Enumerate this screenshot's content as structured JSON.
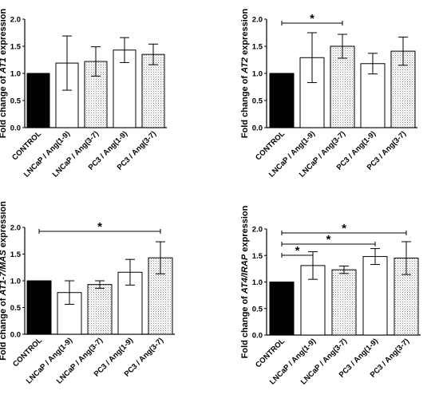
{
  "chart_data": [
    {
      "type": "bar",
      "categories": [
        "CONTROL",
        "LNCaP / Ang(1-9)",
        "LNCaP / Ang(3-7)",
        "PC3 / Ang(1-9)",
        "PC3 / Ang(3-7)"
      ],
      "values": [
        1.0,
        1.19,
        1.22,
        1.43,
        1.35
      ],
      "errors": [
        0,
        0.5,
        0.27,
        0.23,
        0.19
      ],
      "fills": [
        "solid",
        "white",
        "dotted",
        "white",
        "dotted"
      ],
      "ylabel_pre": "Fold change of ",
      "ylabel_gene": "AT1",
      "ylabel_post": " expression",
      "ylim": [
        0,
        2.0
      ],
      "yticks": [
        "0.0",
        "0.5",
        "1.0",
        "1.5",
        "2.0"
      ],
      "significance": []
    },
    {
      "type": "bar",
      "categories": [
        "CONTROL",
        "LNCaP / Ang(1-9)",
        "LNCaP / Ang(3-7)",
        "PC3 / Ang(1-9)",
        "PC3 / Ang(3-7)"
      ],
      "values": [
        1.0,
        1.29,
        1.5,
        1.18,
        1.41
      ],
      "errors": [
        0,
        0.46,
        0.22,
        0.19,
        0.26
      ],
      "fills": [
        "solid",
        "white",
        "dotted",
        "white",
        "dotted"
      ],
      "ylabel_pre": "Fold change of ",
      "ylabel_gene": "AT2",
      "ylabel_post": " expression",
      "ylim": [
        0,
        2.0
      ],
      "yticks": [
        "0.0",
        "0.5",
        "1.0",
        "1.5",
        "2.0"
      ],
      "significance": [
        {
          "from": 0,
          "to": 2,
          "label": "*"
        }
      ]
    },
    {
      "type": "bar",
      "categories": [
        "CONTROL",
        "LNCaP / Ang(1-9)",
        "LNCaP / Ang(3-7)",
        "PC3 / Ang(1-9)",
        "PC3 / Ang(3-7)"
      ],
      "values": [
        1.0,
        0.78,
        0.93,
        1.16,
        1.43
      ],
      "errors": [
        0,
        0.22,
        0.07,
        0.24,
        0.3
      ],
      "fills": [
        "solid",
        "white",
        "dotted",
        "white",
        "dotted"
      ],
      "ylabel_pre": "Fold change of ",
      "ylabel_gene": "AT1-7/MAS",
      "ylabel_post": " expression",
      "ylim": [
        0,
        2.0
      ],
      "yticks": [
        "0.0",
        "0.5",
        "1.0",
        "1.5",
        "2.0"
      ],
      "significance": [
        {
          "from": 0,
          "to": 4,
          "label": "*"
        }
      ]
    },
    {
      "type": "bar",
      "categories": [
        "CONTROL",
        "LNCaP / Ang(1-9)",
        "LNCaP / Ang(3-7)",
        "PC3 / Ang(1-9)",
        "PC3 / Ang(3-7)"
      ],
      "values": [
        1.0,
        1.31,
        1.23,
        1.48,
        1.45
      ],
      "errors": [
        0,
        0.26,
        0.07,
        0.15,
        0.31
      ],
      "fills": [
        "solid",
        "white",
        "dotted",
        "white",
        "dotted"
      ],
      "ylabel_pre": "Fold change of ",
      "ylabel_gene": "AT4/IRAP",
      "ylabel_post": " expression",
      "ylim": [
        0,
        2.0
      ],
      "yticks": [
        "0.0",
        "0.5",
        "1.0",
        "1.5",
        "2.0"
      ],
      "significance": [
        {
          "from": 0,
          "to": 1,
          "label": "*"
        },
        {
          "from": 0,
          "to": 3,
          "label": "*"
        },
        {
          "from": 0,
          "to": 4,
          "label": "*"
        }
      ]
    }
  ]
}
